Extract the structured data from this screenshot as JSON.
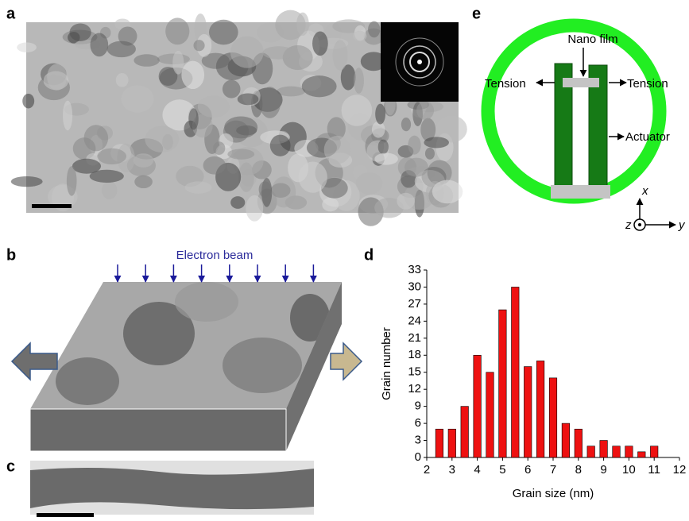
{
  "panel_labels": [
    "a",
    "b",
    "c",
    "d",
    "e"
  ],
  "panel_b": {
    "beam_label": "Electron beam"
  },
  "panel_e": {
    "nano_film": "Nano film",
    "tension_left": "Tension",
    "tension_right": "Tension",
    "actuator": "Actuator",
    "axis_x": "x",
    "axis_y": "y",
    "axis_z": "z"
  },
  "chart_data": {
    "type": "bar",
    "x": [
      2.5,
      3,
      3.5,
      4,
      4.5,
      5,
      5.5,
      6,
      6.5,
      7,
      7.5,
      8,
      8.5,
      9,
      9.5,
      10,
      10.5,
      11
    ],
    "values": [
      5,
      5,
      9,
      18,
      15,
      26,
      30,
      16,
      17,
      14,
      6,
      5,
      2,
      3,
      2,
      2,
      1,
      2
    ],
    "color": "#ee1111",
    "xlabel": "Grain size (nm)",
    "ylabel": "Grain number",
    "xlim": [
      2,
      12
    ],
    "xticks": [
      2,
      3,
      4,
      5,
      6,
      7,
      8,
      9,
      10,
      11,
      12
    ],
    "ylim": [
      0,
      33
    ],
    "yticks": [
      0,
      3,
      6,
      9,
      12,
      15,
      18,
      21,
      24,
      27,
      30,
      33
    ]
  }
}
